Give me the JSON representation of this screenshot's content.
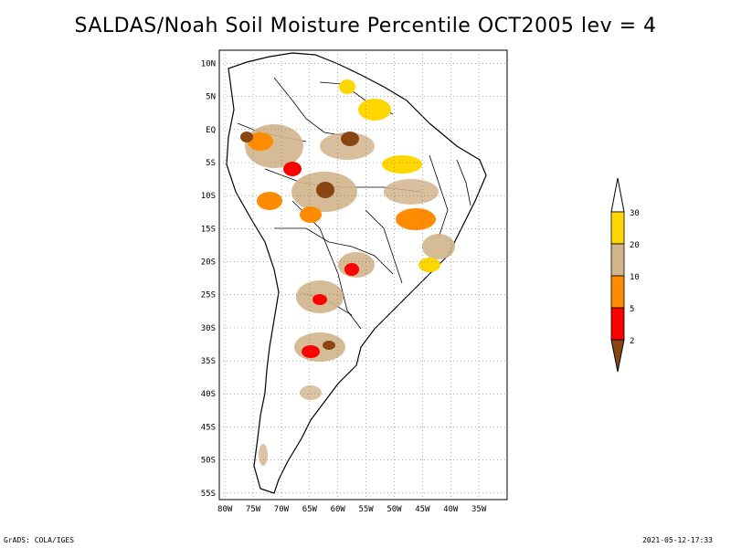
{
  "title": "SALDAS/Noah Soil Moisture Percentile OCT2005 lev = 4",
  "footer": {
    "left": "GrADS: COLA/IGES",
    "right": "2021-05-12-17:33"
  },
  "map": {
    "lon_range": [
      -81,
      -30
    ],
    "lat_range": [
      -56,
      12
    ],
    "lon_ticks": [
      "80W",
      "75W",
      "70W",
      "65W",
      "60W",
      "55W",
      "50W",
      "45W",
      "40W",
      "35W"
    ],
    "lat_ticks": [
      "10N",
      "5N",
      "EQ",
      "5S",
      "10S",
      "15S",
      "20S",
      "25S",
      "30S",
      "35S",
      "40S",
      "45S",
      "50S",
      "55S"
    ],
    "grid": true
  },
  "colorbar": {
    "labels": [
      "2",
      "5",
      "10",
      "20",
      "30"
    ],
    "colors": [
      "#8b4513",
      "#ff0000",
      "#ff8c00",
      "#d2b48c",
      "#ffd700",
      "#ffffff"
    ]
  }
}
